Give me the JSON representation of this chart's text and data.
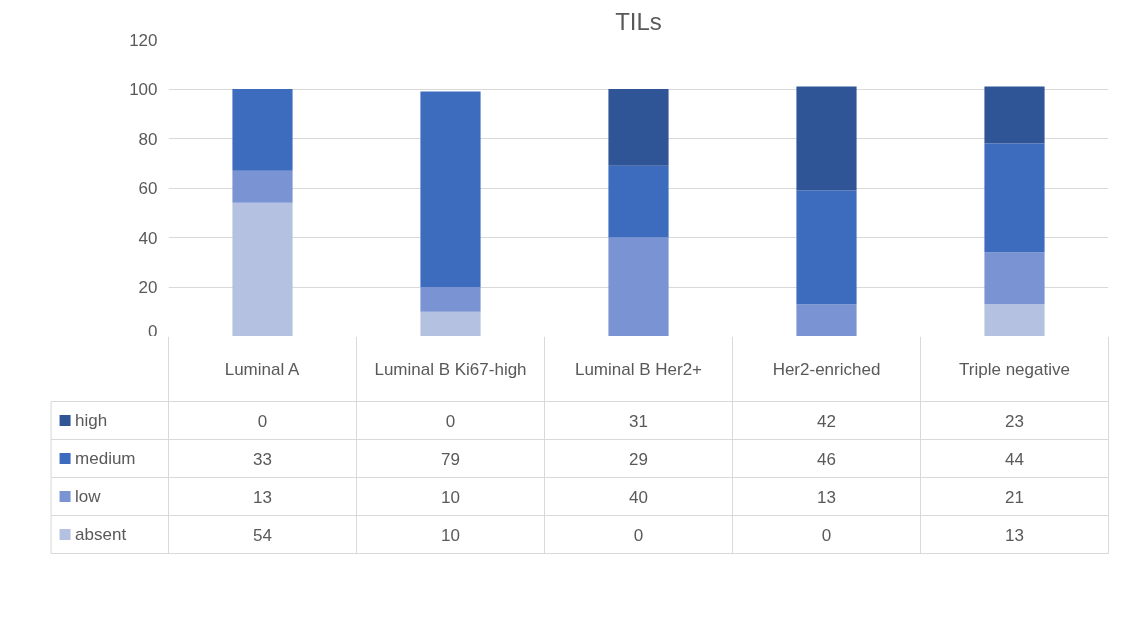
{
  "chart_data": {
    "type": "bar",
    "title": "TILs",
    "stacked": true,
    "categories": [
      "Luminal A",
      "Luminal B Ki67-high",
      "Luminal B Her2+",
      "Her2-enriched",
      "Triple negative"
    ],
    "series": [
      {
        "name": "absent",
        "color": "#b4c1e0",
        "values": [
          54,
          10,
          0,
          0,
          13
        ]
      },
      {
        "name": "low",
        "color": "#7a93d2",
        "values": [
          13,
          10,
          40,
          13,
          21
        ]
      },
      {
        "name": "medium",
        "color": "#3d6bbd",
        "values": [
          33,
          79,
          29,
          46,
          44
        ]
      },
      {
        "name": "high",
        "color": "#2f5597",
        "values": [
          0,
          0,
          31,
          42,
          23
        ]
      }
    ],
    "ylim": [
      0,
      120
    ],
    "yticks": [
      0,
      20,
      40,
      60,
      80,
      100,
      120
    ],
    "grid": "y",
    "legend": "bottom",
    "data_labels": true
  }
}
